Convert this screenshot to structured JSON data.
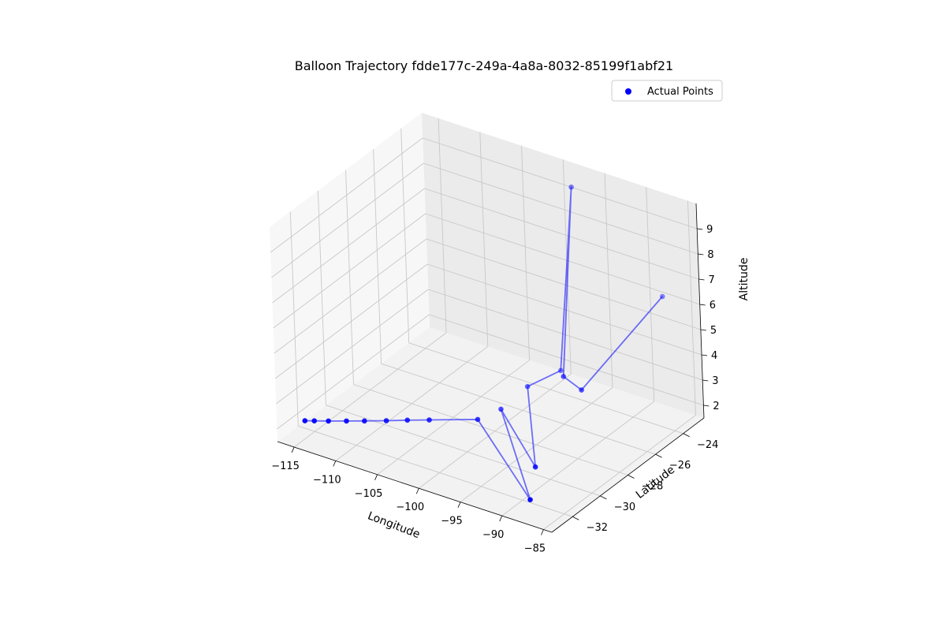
{
  "chart_data": {
    "type": "scatter",
    "title": "Balloon Trajectory fdde177c-249a-4a8a-8032-85199f1abf21",
    "xlabel": "Longitude",
    "ylabel": "Latitude",
    "zlabel": "Altitude",
    "xlim": [
      -117,
      -84
    ],
    "ylim": [
      -33.5,
      -22.5
    ],
    "zlim": [
      1.5,
      10
    ],
    "x_ticks": [
      -115,
      -110,
      -105,
      -100,
      -95,
      -90,
      -85
    ],
    "x_tick_labels": [
      "−115",
      "−110",
      "−105",
      "−100",
      "−95",
      "−90",
      "−85"
    ],
    "y_ticks": [
      -32,
      -30,
      -28,
      -26,
      -24
    ],
    "y_tick_labels": [
      "−32",
      "−30",
      "−28",
      "−26",
      "−24"
    ],
    "z_ticks": [
      2,
      3,
      4,
      5,
      6,
      7,
      8,
      9
    ],
    "z_tick_labels": [
      "2",
      "3",
      "4",
      "5",
      "6",
      "7",
      "8",
      "9"
    ],
    "grid": true,
    "legend": {
      "position": "top-right",
      "entries": [
        "Actual Points"
      ]
    },
    "colors": {
      "points": "#0000ff",
      "line": "#0000ff",
      "pane": "#f2f2f2",
      "grid": "#c8c8c8"
    },
    "series": [
      {
        "name": "Actual Points",
        "points": [
          {
            "lon": -115.3,
            "lat": -32.5,
            "alt": 2.1
          },
          {
            "lon": -114.5,
            "lat": -32.3,
            "alt": 2.1
          },
          {
            "lon": -113.3,
            "lat": -32.0,
            "alt": 2.1
          },
          {
            "lon": -111.8,
            "lat": -31.6,
            "alt": 2.1
          },
          {
            "lon": -110.3,
            "lat": -31.2,
            "alt": 2.1
          },
          {
            "lon": -108.5,
            "lat": -30.7,
            "alt": 2.1
          },
          {
            "lon": -106.8,
            "lat": -30.2,
            "alt": 2.1
          },
          {
            "lon": -105.0,
            "lat": -29.7,
            "alt": 2.1
          },
          {
            "lon": -101.0,
            "lat": -28.6,
            "alt": 2.1
          },
          {
            "lon": -87.7,
            "lat": -32.8,
            "alt": 2.1
          },
          {
            "lon": -100.2,
            "lat": -27.4,
            "alt": 2.1
          },
          {
            "lon": -90.9,
            "lat": -30.5,
            "alt": 2.1
          },
          {
            "lon": -100.5,
            "lat": -25.3,
            "alt": 2.1
          },
          {
            "lon": -99.5,
            "lat": -23.5,
            "alt": 2.1
          },
          {
            "lon": -97.4,
            "lat": -23.5,
            "alt": 9.6
          },
          {
            "lon": -94.0,
            "lat": -26.5,
            "alt": 3.7
          },
          {
            "lon": -91.0,
            "lat": -27.0,
            "alt": 3.7
          },
          {
            "lon": -88.0,
            "lat": -22.8,
            "alt": 6.0
          }
        ]
      }
    ]
  }
}
